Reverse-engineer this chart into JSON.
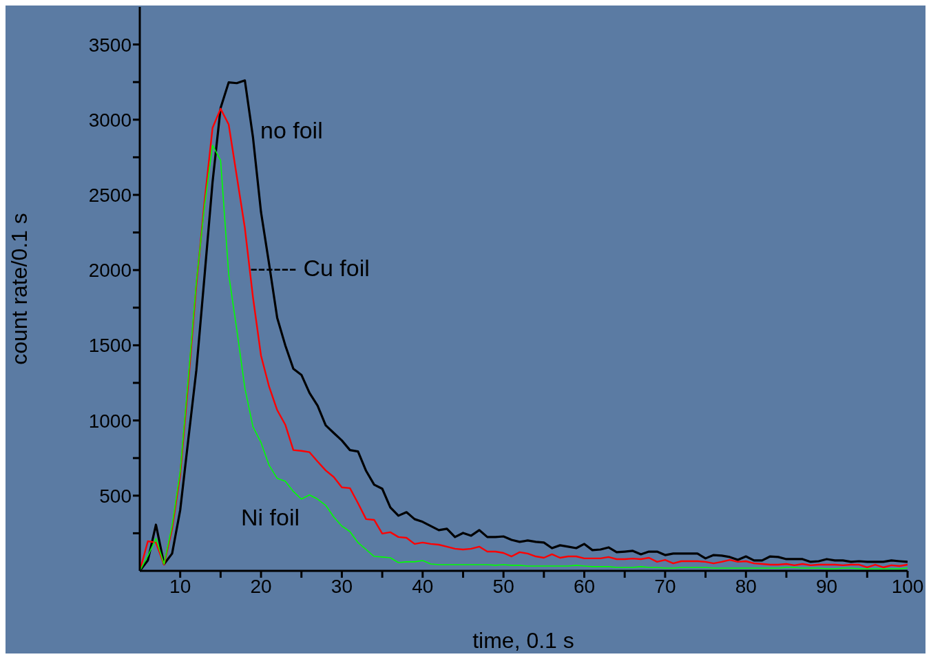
{
  "chart_data": {
    "type": "line",
    "xlabel": "time, 0.1 s",
    "ylabel": "count rate/0.1 s",
    "x": [
      5,
      6,
      7,
      8,
      9,
      10,
      11,
      12,
      13,
      14,
      15,
      16,
      17,
      18,
      19,
      20,
      21,
      22,
      23,
      24,
      25,
      26,
      27,
      28,
      29,
      30,
      31,
      32,
      33,
      34,
      35,
      36,
      37,
      38,
      39,
      40,
      41,
      42,
      43,
      44,
      45,
      46,
      47,
      48,
      49,
      50,
      51,
      52,
      53,
      54,
      55,
      56,
      57,
      58,
      59,
      60,
      61,
      62,
      63,
      64,
      65,
      66,
      67,
      68,
      69,
      70,
      71,
      72,
      73,
      74,
      75,
      76,
      77,
      78,
      79,
      80,
      81,
      82,
      83,
      84,
      85,
      86,
      87,
      88,
      89,
      90,
      91,
      92,
      93,
      94,
      95,
      96,
      97,
      98,
      99,
      100
    ],
    "series": [
      {
        "color": "#000000",
        "values": [
          0,
          70,
          307,
          45,
          115,
          404,
          872,
          1335,
          1954,
          2583,
          3078,
          3248,
          3243,
          3261,
          2885,
          2385,
          2041,
          1683,
          1500,
          1344,
          1303,
          1183,
          1098,
          968,
          917,
          867,
          803,
          794,
          665,
          573,
          546,
          422,
          367,
          390,
          344,
          326,
          298,
          271,
          280,
          225,
          252,
          234,
          271,
          225,
          225,
          229,
          206,
          193,
          202,
          193,
          188,
          151,
          170,
          161,
          151,
          179,
          138,
          142,
          156,
          124,
          128,
          133,
          110,
          128,
          128,
          105,
          115,
          115,
          115,
          115,
          83,
          105,
          101,
          92,
          73,
          96,
          69,
          69,
          96,
          92,
          78,
          78,
          78,
          60,
          64,
          78,
          69,
          69,
          60,
          64,
          60,
          60,
          60,
          69,
          64,
          60
        ]
      },
      {
        "color": "#ff0000",
        "values": [
          0,
          197,
          188,
          41,
          280,
          640,
          1250,
          1900,
          2450,
          2945,
          3073,
          2968,
          2624,
          2280,
          1821,
          1431,
          1225,
          1069,
          972,
          803,
          798,
          789,
          727,
          668,
          624,
          555,
          550,
          450,
          344,
          339,
          248,
          257,
          225,
          220,
          179,
          188,
          179,
          174,
          161,
          147,
          142,
          147,
          161,
          128,
          128,
          119,
          96,
          124,
          115,
          96,
          87,
          110,
          87,
          96,
          96,
          83,
          83,
          83,
          92,
          78,
          78,
          82,
          78,
          87,
          60,
          73,
          50,
          64,
          64,
          64,
          60,
          50,
          60,
          73,
          60,
          64,
          50,
          46,
          41,
          41,
          46,
          37,
          46,
          37,
          41,
          41,
          41,
          37,
          41,
          41,
          23,
          41,
          23,
          37,
          32,
          41
        ]
      },
      {
        "color": "#00ff00",
        "values": [
          0,
          100,
          215,
          45,
          300,
          660,
          1280,
          1920,
          2420,
          2830,
          2729,
          1972,
          1605,
          1216,
          959,
          853,
          702,
          615,
          596,
          528,
          477,
          505,
          477,
          436,
          358,
          298,
          261,
          188,
          142,
          96,
          92,
          87,
          55,
          60,
          60,
          69,
          46,
          41,
          41,
          41,
          41,
          41,
          41,
          41,
          37,
          41,
          37,
          37,
          32,
          32,
          32,
          32,
          32,
          32,
          37,
          32,
          28,
          28,
          28,
          23,
          23,
          23,
          28,
          23,
          23,
          18,
          18,
          23,
          23,
          23,
          23,
          18,
          18,
          18,
          18,
          18,
          18,
          18,
          18,
          18,
          23,
          23,
          18,
          18,
          18,
          14,
          14,
          18,
          18,
          14,
          14,
          14,
          14,
          14,
          14,
          18
        ]
      }
    ],
    "xlim": [
      5,
      100
    ],
    "xticks": [
      10,
      {
        "value": 15,
        "label": null
      },
      20,
      {
        "value": 25,
        "label": null
      },
      30,
      {
        "value": 35,
        "label": null
      },
      40,
      {
        "value": 45,
        "label": null
      },
      50,
      {
        "value": 55,
        "label": null
      },
      60,
      {
        "value": 65,
        "label": null
      },
      70,
      {
        "value": 75,
        "label": null
      },
      80,
      {
        "value": 85,
        "label": null
      },
      90,
      {
        "value": 95,
        "label": null
      },
      100
    ],
    "ylim": [
      0,
      3750
    ],
    "yticks": [
      {
        "value": 250,
        "label": null
      },
      500,
      {
        "value": 750,
        "label": null
      },
      1000,
      {
        "value": 1250,
        "label": null
      },
      1500,
      {
        "value": 1750,
        "label": null
      },
      2000,
      {
        "value": 2250,
        "label": null
      },
      2500,
      {
        "value": 2750,
        "label": null
      },
      3000,
      {
        "value": 3250,
        "label": null
      },
      3500
    ],
    "annotations": [
      "no foil",
      "------ Cu foil",
      "Ni foil"
    ],
    "grid": false,
    "legend": false,
    "marker": "none",
    "line_style": "solid"
  }
}
